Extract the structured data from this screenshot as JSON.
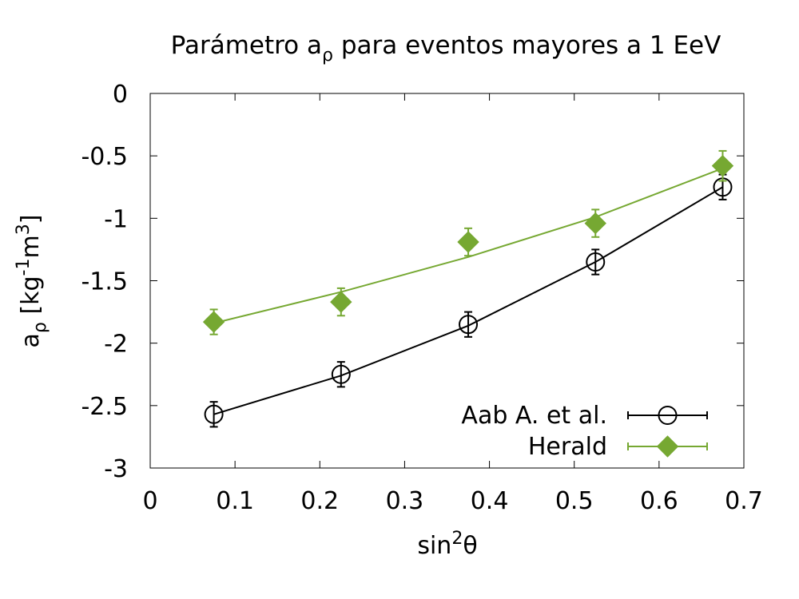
{
  "chart_data": {
    "type": "scatter",
    "title": {
      "main": "Parámetro a",
      "sub": "ρ",
      "rest": " para eventos mayores a 1 EeV"
    },
    "xlabel": {
      "main": "sin",
      "sup": "2",
      "rest": "θ"
    },
    "ylabel": {
      "main": "a",
      "sub": "ρ",
      "unit_open": " [kg",
      "sup1": "-1",
      "mid": "m",
      "sup2": "3",
      "unit_close": "]"
    },
    "xlim": [
      0,
      0.7
    ],
    "ylim": [
      -3,
      0
    ],
    "xticks": [
      0,
      0.1,
      0.2,
      0.3,
      0.4,
      0.5,
      0.6,
      0.7
    ],
    "yticks": [
      0,
      -0.5,
      -1,
      -1.5,
      -2,
      -2.5,
      -3
    ],
    "xtick_labels": [
      "0",
      "0.1",
      "0.2",
      "0.3",
      "0.4",
      "0.5",
      "0.6",
      "0.7"
    ],
    "ytick_labels": [
      "0",
      "-0.5",
      "-1",
      "-1.5",
      "-2",
      "-2.5",
      "-3"
    ],
    "grid": false,
    "legend_position": "bottom-right",
    "series": [
      {
        "name": "Aab A. et al.",
        "color": "#000000",
        "marker": "open-circle",
        "x": [
          0.075,
          0.225,
          0.375,
          0.525,
          0.675
        ],
        "y": [
          -2.57,
          -2.25,
          -1.85,
          -1.35,
          -0.75
        ],
        "yerr": [
          0.1,
          0.1,
          0.1,
          0.1,
          0.1
        ],
        "fit_x": [
          0.075,
          0.225,
          0.375,
          0.525,
          0.675
        ],
        "fit_y": [
          -2.57,
          -2.26,
          -1.86,
          -1.35,
          -0.75
        ]
      },
      {
        "name": "Herald",
        "color": "#76a832",
        "marker": "filled-diamond",
        "x": [
          0.075,
          0.225,
          0.375,
          0.525,
          0.675
        ],
        "y": [
          -1.83,
          -1.67,
          -1.19,
          -1.04,
          -0.58
        ],
        "yerr": [
          0.1,
          0.11,
          0.11,
          0.11,
          0.12
        ],
        "fit_x": [
          0.075,
          0.225,
          0.375,
          0.525,
          0.675
        ],
        "fit_y": [
          -1.84,
          -1.59,
          -1.31,
          -0.99,
          -0.6
        ]
      }
    ]
  }
}
